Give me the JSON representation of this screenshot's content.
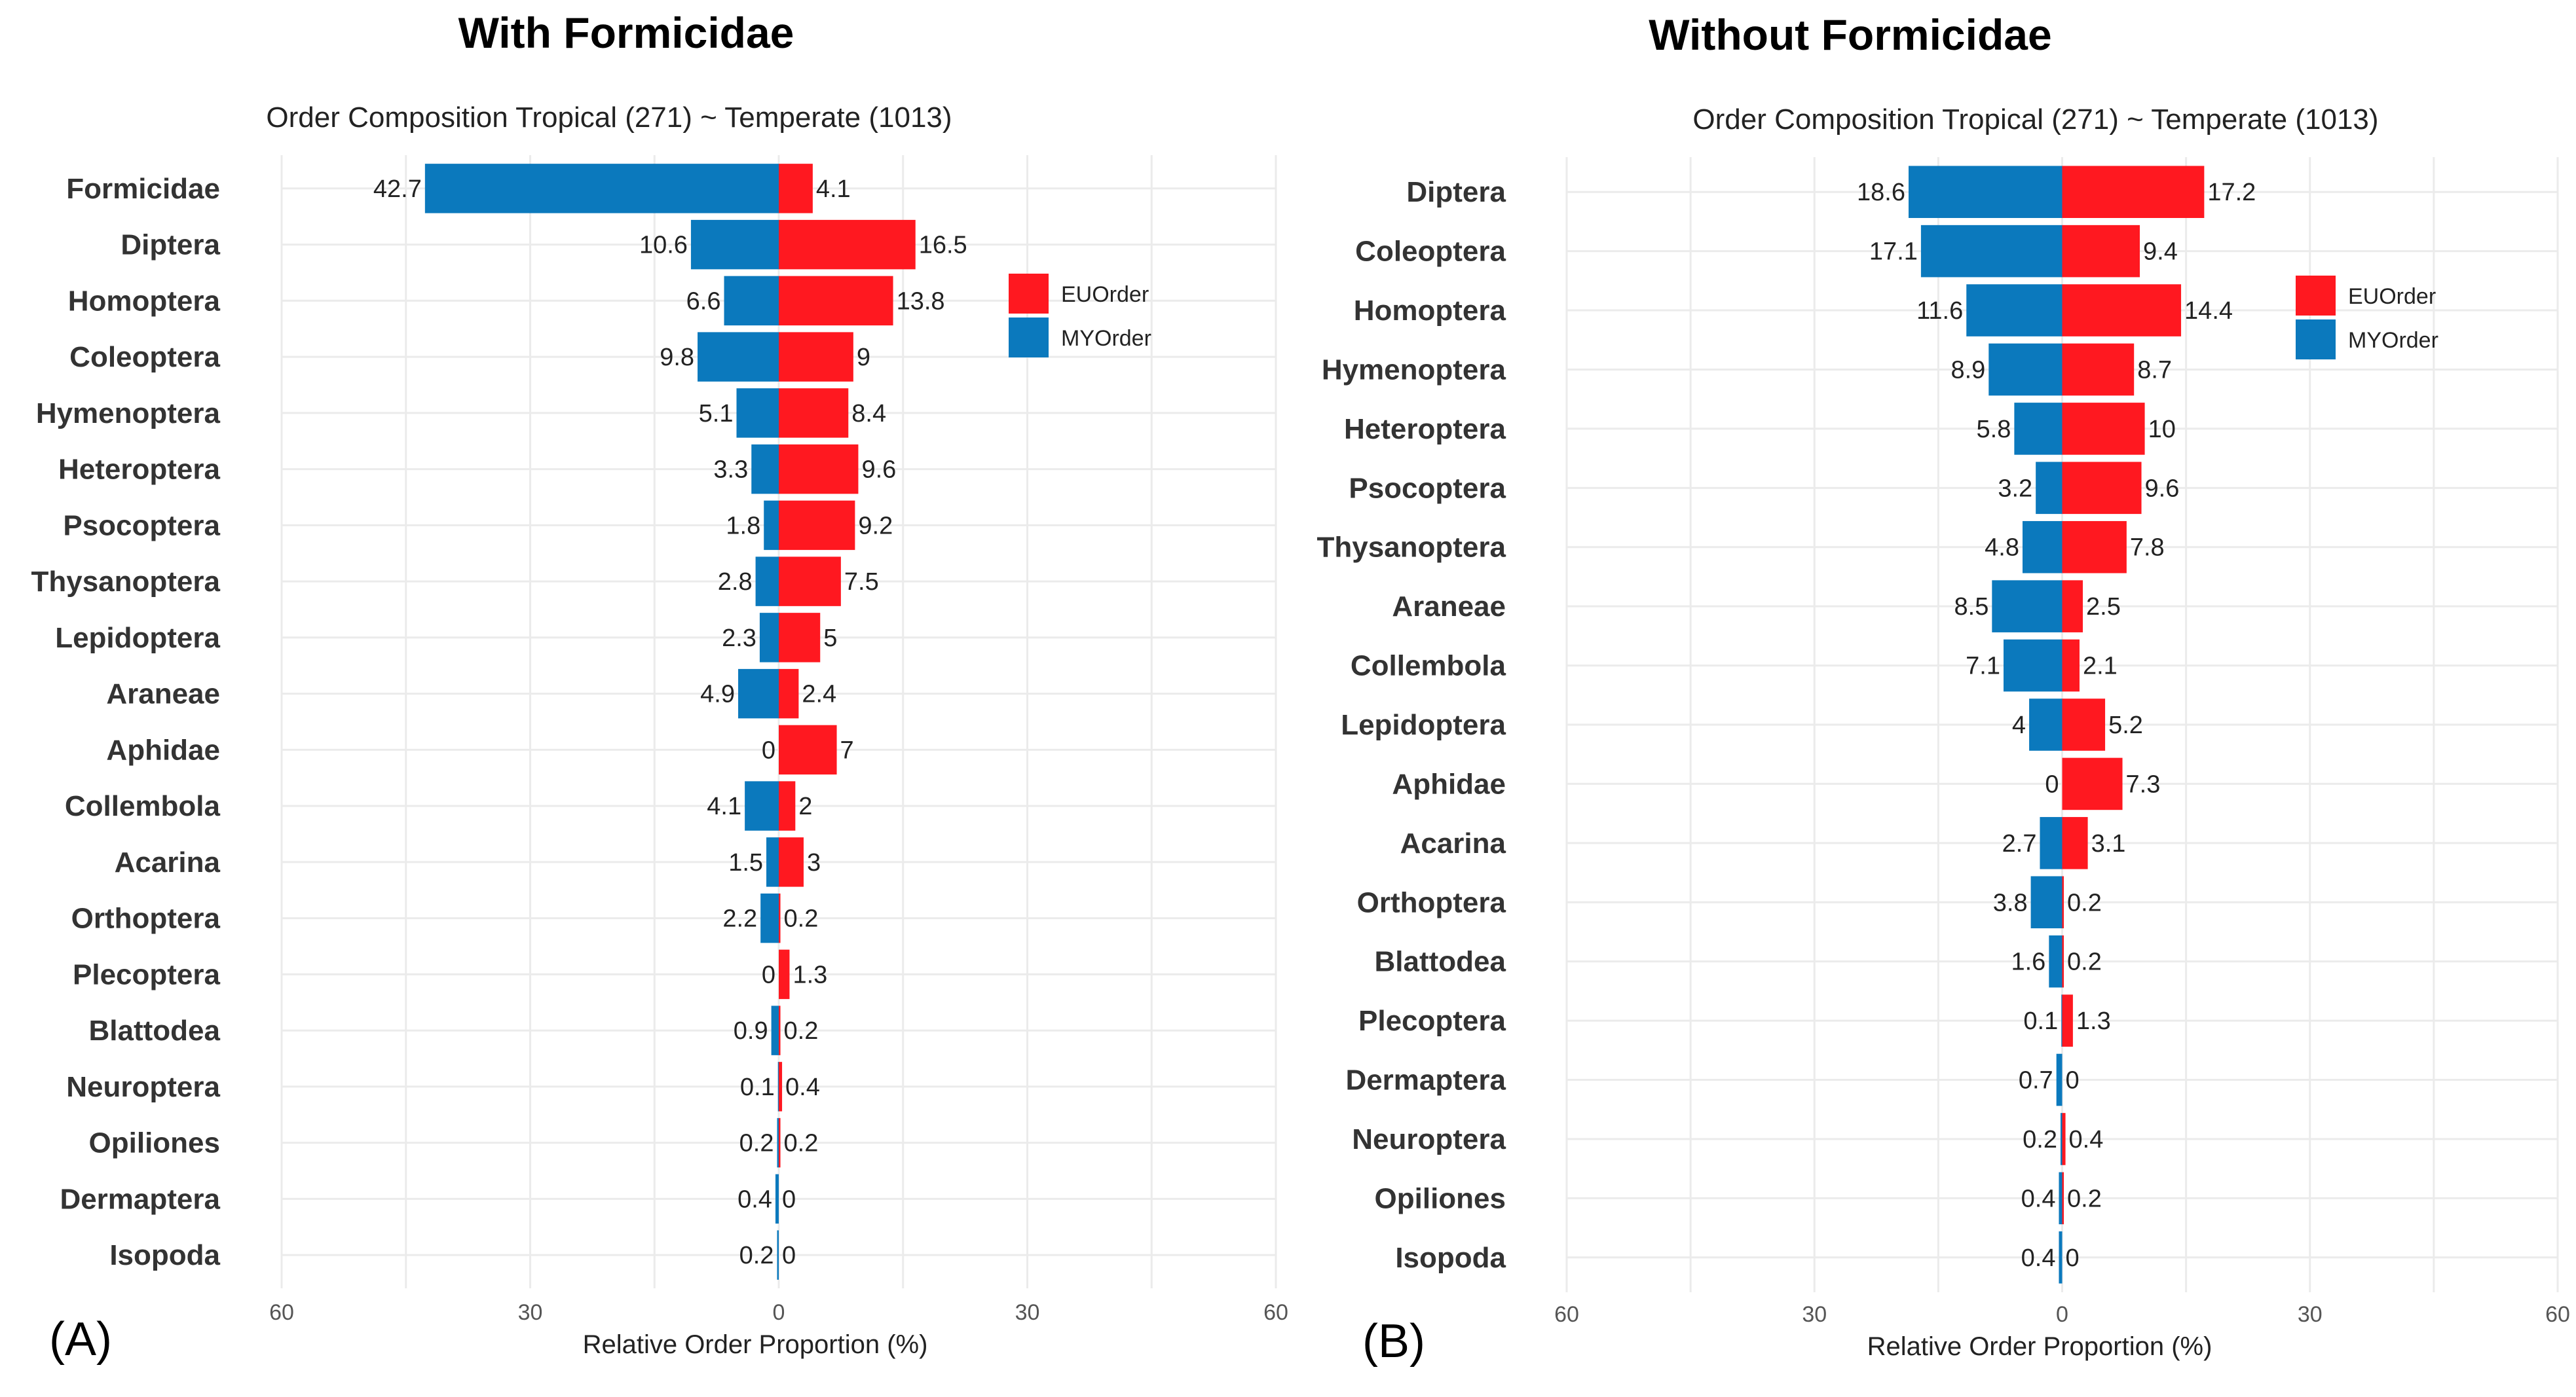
{
  "colors": {
    "eu": "#FF1820",
    "my": "#0B79BD",
    "grid": "#ebebeb"
  },
  "chart_data": [
    {
      "type": "bar",
      "orientation": "horizontal",
      "panel_label": "(A)",
      "title": "With Formicidae",
      "subtitle": "Order Composition Tropical (271) ~ Temperate (1013)",
      "xlabel": "Relative Order Proportion (%)",
      "ylabel": "",
      "xlim": [
        -60,
        60
      ],
      "x_ticks": [
        "60",
        "30",
        "0",
        "30",
        "60"
      ],
      "legend": {
        "position": "right",
        "entries": [
          "EUOrder",
          "MYOrder"
        ]
      },
      "categories": [
        "Formicidae",
        "Diptera",
        "Homoptera",
        "Coleoptera",
        "Hymenoptera",
        "Heteroptera",
        "Psocoptera",
        "Thysanoptera",
        "Lepidoptera",
        "Araneae",
        "Aphidae",
        "Collembola",
        "Acarina",
        "Orthoptera",
        "Plecoptera",
        "Blattodea",
        "Neuroptera",
        "Opiliones",
        "Dermaptera",
        "Isopoda"
      ],
      "series": [
        {
          "name": "MYOrder",
          "side": "left",
          "values": [
            42.7,
            10.6,
            6.6,
            9.8,
            5.1,
            3.3,
            1.8,
            2.8,
            2.3,
            4.9,
            0,
            4.1,
            1.5,
            2.2,
            0,
            0.9,
            0.1,
            0.2,
            0.4,
            0.2
          ]
        },
        {
          "name": "EUOrder",
          "side": "right",
          "values": [
            4.1,
            16.5,
            13.8,
            9,
            8.4,
            9.6,
            9.2,
            7.5,
            5,
            2.4,
            7,
            2,
            3,
            0.2,
            1.3,
            0.2,
            0.4,
            0.2,
            0,
            0
          ]
        }
      ]
    },
    {
      "type": "bar",
      "orientation": "horizontal",
      "panel_label": "(B)",
      "title": "Without Formicidae",
      "subtitle": "Order Composition Tropical (271) ~ Temperate (1013)",
      "xlabel": "Relative Order Proportion (%)",
      "ylabel": "",
      "xlim": [
        -60,
        60
      ],
      "x_ticks": [
        "60",
        "30",
        "0",
        "30",
        "60"
      ],
      "legend": {
        "position": "right",
        "entries": [
          "EUOrder",
          "MYOrder"
        ]
      },
      "categories": [
        "Diptera",
        "Coleoptera",
        "Homoptera",
        "Hymenoptera",
        "Heteroptera",
        "Psocoptera",
        "Thysanoptera",
        "Araneae",
        "Collembola",
        "Lepidoptera",
        "Aphidae",
        "Acarina",
        "Orthoptera",
        "Blattodea",
        "Plecoptera",
        "Dermaptera",
        "Neuroptera",
        "Opiliones",
        "Isopoda"
      ],
      "series": [
        {
          "name": "MYOrder",
          "side": "left",
          "values": [
            18.6,
            17.1,
            11.6,
            8.9,
            5.8,
            3.2,
            4.8,
            8.5,
            7.1,
            4,
            0,
            2.7,
            3.8,
            1.6,
            0.1,
            0.7,
            0.2,
            0.4,
            0.4
          ]
        },
        {
          "name": "EUOrder",
          "side": "right",
          "values": [
            17.2,
            9.4,
            14.4,
            8.7,
            10,
            9.6,
            7.8,
            2.5,
            2.1,
            5.2,
            7.3,
            3.1,
            0.2,
            0.2,
            1.3,
            0,
            0.4,
            0.2,
            0
          ]
        }
      ]
    }
  ]
}
